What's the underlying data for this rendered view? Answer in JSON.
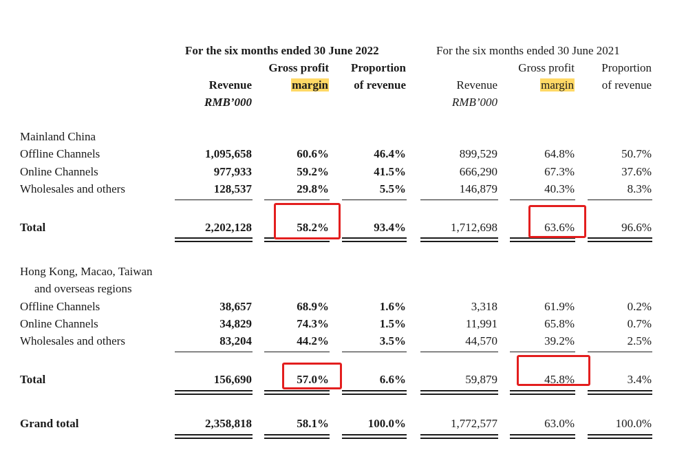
{
  "header": {
    "period_2022": "For the six months ended 30 June 2022",
    "period_2021": "For the six months ended 30 June 2021",
    "col_revenue": "Revenue",
    "col_unit": "RMB’000",
    "col_gpm_line1": "Gross profit",
    "col_gpm_line2": "margin",
    "col_prop_line1": "Proportion",
    "col_prop_line2": "of revenue"
  },
  "mainland": {
    "title": "Mainland China",
    "rows": [
      {
        "label": "Offline Channels",
        "rev22": "1,095,658",
        "gpm22": "60.6%",
        "prop22": "46.4%",
        "rev21": "899,529",
        "gpm21": "64.8%",
        "prop21": "50.7%"
      },
      {
        "label": "Online Channels",
        "rev22": "977,933",
        "gpm22": "59.2%",
        "prop22": "41.5%",
        "rev21": "666,290",
        "gpm21": "67.3%",
        "prop21": "37.6%"
      },
      {
        "label": "Wholesales and others",
        "rev22": "128,537",
        "gpm22": "29.8%",
        "prop22": "5.5%",
        "rev21": "146,879",
        "gpm21": "40.3%",
        "prop21": "8.3%"
      }
    ],
    "total": {
      "label": "Total",
      "rev22": "2,202,128",
      "gpm22": "58.2%",
      "prop22": "93.4%",
      "rev21": "1,712,698",
      "gpm21": "63.6%",
      "prop21": "96.6%"
    }
  },
  "overseas": {
    "title_line1": "Hong Kong, Macao, Taiwan",
    "title_line2": "and overseas regions",
    "rows": [
      {
        "label": "Offline Channels",
        "rev22": "38,657",
        "gpm22": "68.9%",
        "prop22": "1.6%",
        "rev21": "3,318",
        "gpm21": "61.9%",
        "prop21": "0.2%"
      },
      {
        "label": "Online Channels",
        "rev22": "34,829",
        "gpm22": "74.3%",
        "prop22": "1.5%",
        "rev21": "11,991",
        "gpm21": "65.8%",
        "prop21": "0.7%"
      },
      {
        "label": "Wholesales and others",
        "rev22": "83,204",
        "gpm22": "44.2%",
        "prop22": "3.5%",
        "rev21": "44,570",
        "gpm21": "39.2%",
        "prop21": "2.5%"
      }
    ],
    "total": {
      "label": "Total",
      "rev22": "156,690",
      "gpm22": "57.0%",
      "prop22": "6.6%",
      "rev21": "59,879",
      "gpm21": "45.8%",
      "prop21": "3.4%"
    }
  },
  "grand_total": {
    "label": "Grand total",
    "rev22": "2,358,818",
    "gpm22": "58.1%",
    "prop22": "100.0%",
    "rev21": "1,772,577",
    "gpm21": "63.0%",
    "prop21": "100.0%"
  },
  "colors": {
    "highlight": "#ffd966",
    "annotation_box": "#e31e1e"
  }
}
